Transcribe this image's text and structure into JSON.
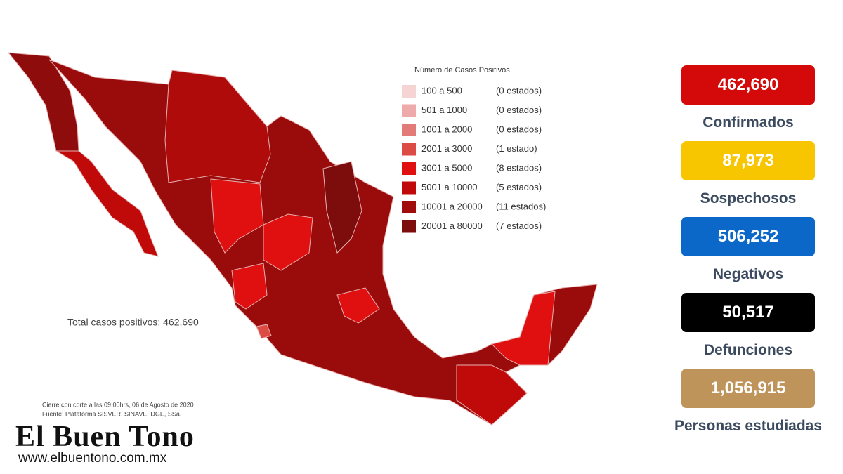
{
  "legend": {
    "title": "Número de Casos Positivos",
    "items": [
      {
        "range": "100 a 500",
        "count": "(0 estados)",
        "color": "#f6d4d4"
      },
      {
        "range": "501 a 1000",
        "count": "(0 estados)",
        "color": "#eeaaaa"
      },
      {
        "range": "1001 a 2000",
        "count": "(0 estados)",
        "color": "#e27a78"
      },
      {
        "range": "2001 a 3000",
        "count": "(1 estado)",
        "color": "#dd4b45"
      },
      {
        "range": "3001 a 5000",
        "count": "(8 estados)",
        "color": "#e01010"
      },
      {
        "range": "5001 a 10000",
        "count": "(5 estados)",
        "color": "#c00a0a"
      },
      {
        "range": "10001 a 20000",
        "count": "(11 estados)",
        "color": "#a00c0c"
      },
      {
        "range": "20001 a 80000",
        "count": "(7 estados)",
        "color": "#7d0c0c"
      }
    ]
  },
  "total": "Total casos positivos: 462,690",
  "notes": [
    "Cierre con corte a las 09:00hrs, 06 de Agosto de 2020",
    "Fuente: Plataforma SISVER, SINAVE, DGE, SSa."
  ],
  "stats": [
    {
      "value": "462,690",
      "label": "Confirmados",
      "color": "#d40a0a",
      "text_color": "#ffffff"
    },
    {
      "value": "87,973",
      "label": "Sospechosos",
      "color": "#f7c600",
      "text_color": "#ffffff"
    },
    {
      "value": "506,252",
      "label": "Negativos",
      "color": "#0b68c9",
      "text_color": "#ffffff"
    },
    {
      "value": "50,517",
      "label": "Defunciones",
      "color": "#000000",
      "text_color": "#ffffff"
    },
    {
      "value": "1,056,915",
      "label": "Personas estudiadas",
      "color": "#bf945a",
      "text_color": "#ffffff"
    }
  ],
  "brand": {
    "name": "El Buen Tono",
    "url": "www.elbuentono.com.mx"
  }
}
